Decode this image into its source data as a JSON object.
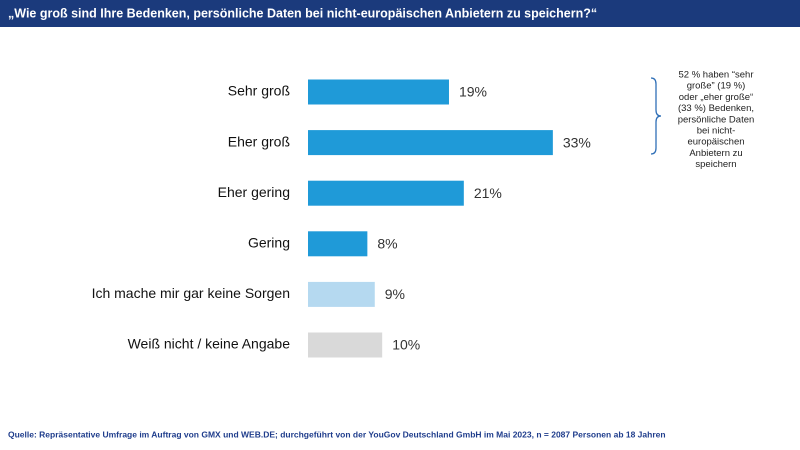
{
  "chart_data": {
    "type": "bar",
    "title": "„Wie groß sind Ihre Bedenken, persönliche Daten bei nicht-europäischen Anbietern zu speichern?“",
    "categories": [
      "Sehr groß",
      "Eher groß",
      "Eher gering",
      "Gering",
      "Ich mache mir gar keine Sorgen",
      "Weiß nicht / keine Angabe"
    ],
    "values": [
      19,
      33,
      21,
      8,
      9,
      10
    ],
    "value_labels": [
      "19%",
      "33%",
      "21%",
      "8%",
      "9%",
      "10%"
    ],
    "colors": [
      "#1f9ad8",
      "#1f9ad8",
      "#1f9ad8",
      "#1f9ad8",
      "#b5d9f0",
      "#d9d9d9"
    ],
    "annotation": [
      "52 % haben “sehr",
      "große” (19 %)",
      "oder „eher große“",
      "(33 %) Bedenken,",
      "persönliche Daten",
      "bei nicht-",
      "europäischen",
      "Anbietern zu",
      "speichern"
    ],
    "source": "Quelle: Repräsentative Umfrage im Auftrag von GMX und WEB.DE; durchgeführt von der YouGov Deutschland GmbH im Mai 2023, n = 2087 Personen ab 18 Jahren"
  }
}
